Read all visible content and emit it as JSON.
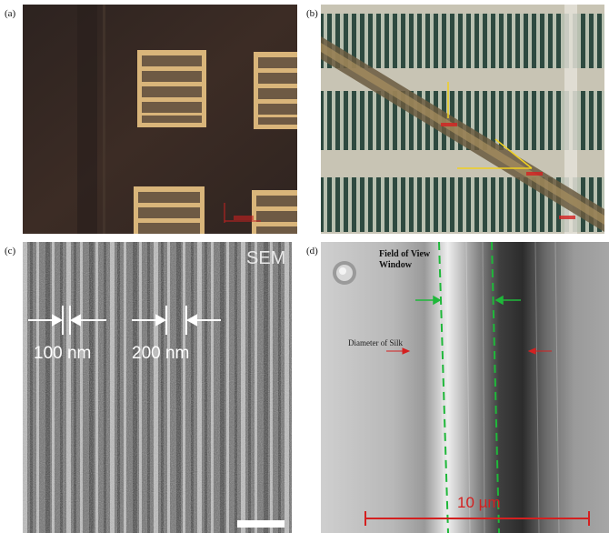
{
  "panels": {
    "a": {
      "label": "(a)",
      "scale_text": ""
    },
    "b": {
      "label": "(b)",
      "annotation_1": "",
      "annotation_2": "",
      "scale_text": ""
    },
    "c": {
      "label": "(c)",
      "sem_text": "SEM",
      "measure_1": "100 nm",
      "measure_2": "200 nm"
    },
    "d": {
      "label": "(d)",
      "fov_line1": "Field of View",
      "fov_line2": "Window",
      "silk_label": "Diameter of Silk",
      "scale_text": "10 µm"
    }
  },
  "colors": {
    "microscope_dark": "#3a2a24",
    "pad_gold": "#d9b57a",
    "pad_fill": "#6e5a44",
    "scale_red": "#d42020",
    "fov_green": "#1fb83a",
    "annotation_yellow": "#f0d020"
  }
}
